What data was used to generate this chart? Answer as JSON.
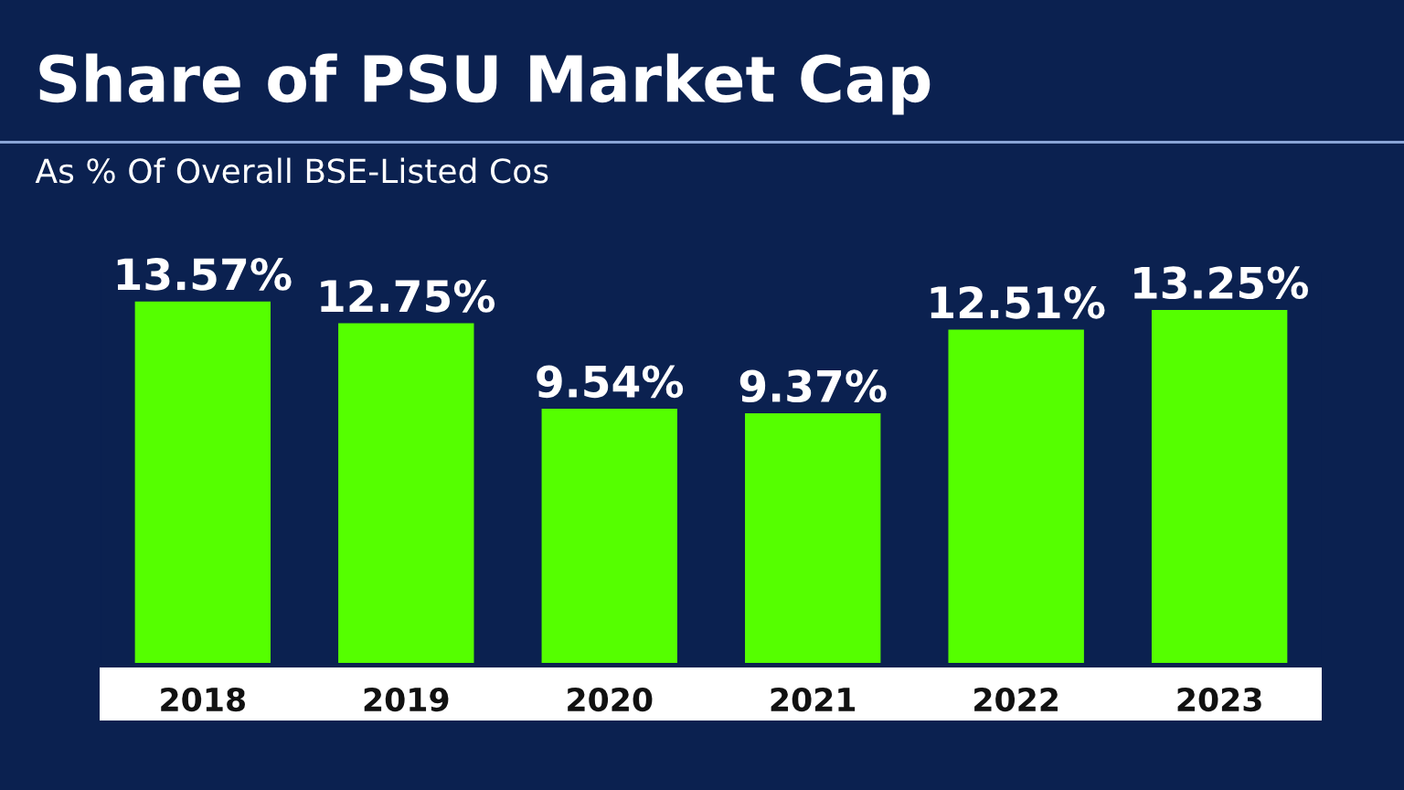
{
  "chart_data": {
    "type": "bar",
    "title": "Share of PSU Market Cap",
    "subtitle": "As % Of Overall BSE-Listed Cos",
    "categories": [
      "2018",
      "2019",
      "2020",
      "2021",
      "2022",
      "2023"
    ],
    "values": [
      13.57,
      12.75,
      9.54,
      9.37,
      12.51,
      13.25
    ],
    "value_labels": [
      "13.57%",
      "12.75%",
      "9.54%",
      "9.37%",
      "12.51%",
      "13.25%"
    ],
    "color": "#55ff00",
    "grid": false,
    "legend": false
  }
}
